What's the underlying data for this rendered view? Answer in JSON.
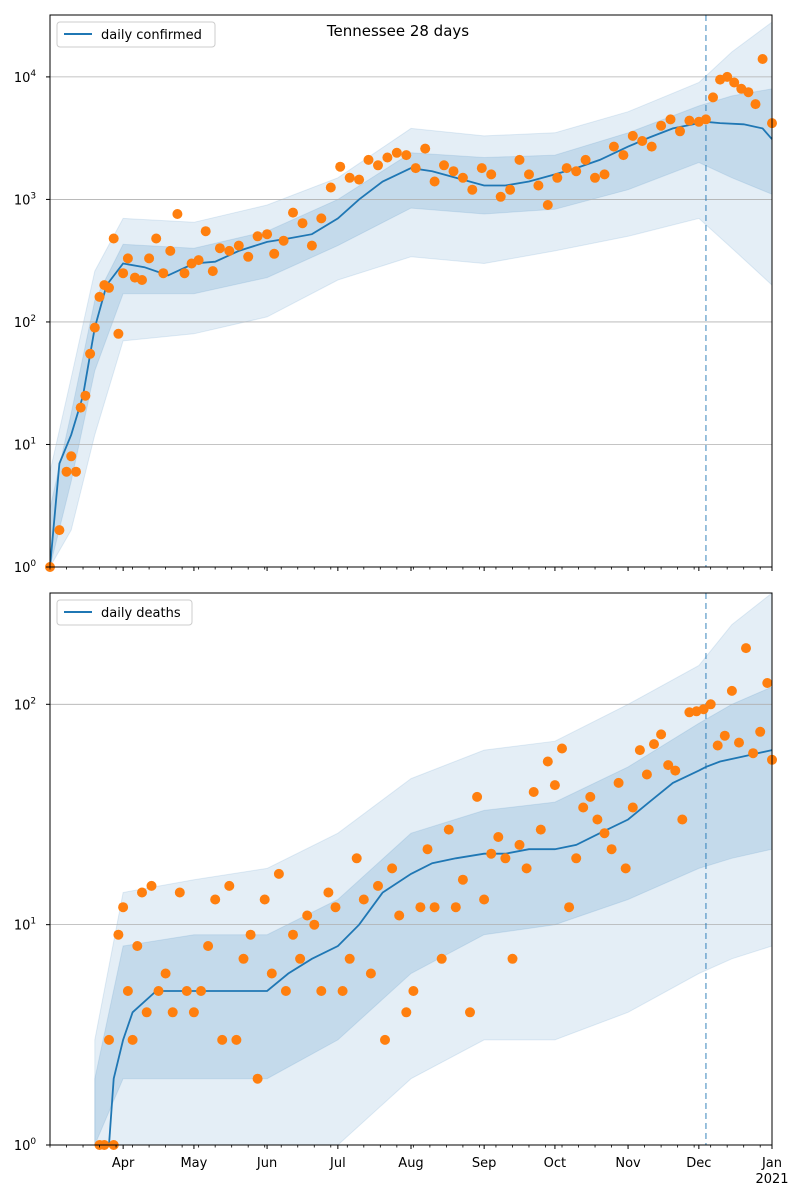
{
  "figure": {
    "title": "Tennessee 28 days"
  },
  "chart_data": [
    {
      "type": "scatter",
      "title": "Tennessee 28 days",
      "xlabel": "",
      "ylabel": "",
      "y_scale": "log",
      "ylim": [
        1,
        32000
      ],
      "xlim": [
        "2020-03-01",
        "2021-01-01"
      ],
      "x_ticks": [
        {
          "date": "2020-04-01",
          "label": "Apr"
        },
        {
          "date": "2020-05-01",
          "label": "May"
        },
        {
          "date": "2020-06-01",
          "label": "Jun"
        },
        {
          "date": "2020-07-01",
          "label": "Jul"
        },
        {
          "date": "2020-08-01",
          "label": "Aug"
        },
        {
          "date": "2020-09-01",
          "label": "Sep"
        },
        {
          "date": "2020-10-01",
          "label": "Oct"
        },
        {
          "date": "2020-11-01",
          "label": "Nov"
        },
        {
          "date": "2020-12-01",
          "label": "Dec"
        },
        {
          "date": "2021-01-01",
          "label": "Jan"
        }
      ],
      "x_tick_year_label": "2021",
      "y_ticks": [
        {
          "value": 1,
          "base": "10",
          "exp": "0"
        },
        {
          "value": 10,
          "base": "10",
          "exp": "1"
        },
        {
          "value": 100,
          "base": "10",
          "exp": "2"
        },
        {
          "value": 1000,
          "base": "10",
          "exp": "3"
        },
        {
          "value": 10000,
          "base": "10",
          "exp": "4"
        }
      ],
      "grid": "horizontal",
      "legend_position": "top-left",
      "forecast_start": "2020-12-04",
      "colors": {
        "line": "#1f77b4",
        "points": "#ff7f0e",
        "band": "#1f77b4"
      },
      "series": [
        {
          "name": "daily confirmed",
          "type": "line",
          "x": [
            "2020-03-01",
            "2020-03-05",
            "2020-03-10",
            "2020-03-15",
            "2020-03-20",
            "2020-03-25",
            "2020-04-01",
            "2020-04-10",
            "2020-04-20",
            "2020-05-01",
            "2020-05-10",
            "2020-05-20",
            "2020-06-01",
            "2020-06-10",
            "2020-06-20",
            "2020-07-01",
            "2020-07-10",
            "2020-07-20",
            "2020-08-01",
            "2020-08-10",
            "2020-08-20",
            "2020-09-01",
            "2020-09-10",
            "2020-09-20",
            "2020-10-01",
            "2020-10-10",
            "2020-10-20",
            "2020-11-01",
            "2020-11-10",
            "2020-11-20",
            "2020-12-01",
            "2020-12-04",
            "2020-12-10",
            "2020-12-20",
            "2020-12-28",
            "2021-01-01"
          ],
          "values": [
            1,
            7,
            12,
            25,
            90,
            200,
            300,
            280,
            240,
            300,
            310,
            380,
            450,
            480,
            520,
            700,
            1000,
            1400,
            1800,
            1700,
            1500,
            1300,
            1300,
            1400,
            1600,
            1800,
            2100,
            2700,
            3200,
            3800,
            4200,
            4300,
            4200,
            4100,
            3800,
            3100
          ]
        },
        {
          "name": "band_90_upper",
          "type": "band",
          "x": [
            "2020-03-01",
            "2020-03-10",
            "2020-03-20",
            "2020-04-01",
            "2020-05-01",
            "2020-06-01",
            "2020-07-01",
            "2020-08-01",
            "2020-09-01",
            "2020-10-01",
            "2020-11-01",
            "2020-12-01",
            "2020-12-15",
            "2021-01-01"
          ],
          "values": [
            6,
            35,
            260,
            700,
            650,
            900,
            1500,
            3800,
            3300,
            3500,
            5200,
            9000,
            16000,
            28000
          ]
        },
        {
          "name": "band_90_lower",
          "type": "band",
          "x": [
            "2020-03-01",
            "2020-03-10",
            "2020-03-20",
            "2020-04-01",
            "2020-05-01",
            "2020-06-01",
            "2020-07-01",
            "2020-08-01",
            "2020-09-01",
            "2020-10-01",
            "2020-11-01",
            "2020-12-01",
            "2020-12-15",
            "2021-01-01"
          ],
          "values": [
            1,
            2,
            12,
            70,
            80,
            110,
            220,
            340,
            300,
            380,
            500,
            700,
            400,
            200
          ]
        },
        {
          "name": "band_50_upper",
          "type": "band",
          "x": [
            "2020-03-01",
            "2020-03-10",
            "2020-03-20",
            "2020-04-01",
            "2020-05-01",
            "2020-06-01",
            "2020-07-01",
            "2020-08-01",
            "2020-09-01",
            "2020-10-01",
            "2020-11-01",
            "2020-12-01",
            "2020-12-15",
            "2021-01-01"
          ],
          "values": [
            3,
            18,
            150,
            430,
            400,
            550,
            1000,
            2400,
            2200,
            2300,
            3500,
            5800,
            7000,
            8000
          ]
        },
        {
          "name": "band_50_lower",
          "type": "band",
          "x": [
            "2020-03-01",
            "2020-03-10",
            "2020-03-20",
            "2020-04-01",
            "2020-05-01",
            "2020-06-01",
            "2020-07-01",
            "2020-08-01",
            "2020-09-01",
            "2020-10-01",
            "2020-11-01",
            "2020-12-01",
            "2020-12-15",
            "2021-01-01"
          ],
          "values": [
            1,
            5,
            40,
            170,
            170,
            230,
            420,
            850,
            760,
            830,
            1200,
            2000,
            1500,
            1100
          ]
        },
        {
          "name": "observed",
          "type": "scatter",
          "x": [
            "2020-03-01",
            "2020-03-05",
            "2020-03-08",
            "2020-03-10",
            "2020-03-12",
            "2020-03-14",
            "2020-03-16",
            "2020-03-18",
            "2020-03-20",
            "2020-03-22",
            "2020-03-24",
            "2020-03-26",
            "2020-03-28",
            "2020-03-30",
            "2020-04-01",
            "2020-04-03",
            "2020-04-06",
            "2020-04-09",
            "2020-04-12",
            "2020-04-15",
            "2020-04-18",
            "2020-04-21",
            "2020-04-24",
            "2020-04-27",
            "2020-04-30",
            "2020-05-03",
            "2020-05-06",
            "2020-05-09",
            "2020-05-12",
            "2020-05-16",
            "2020-05-20",
            "2020-05-24",
            "2020-05-28",
            "2020-06-01",
            "2020-06-04",
            "2020-06-08",
            "2020-06-12",
            "2020-06-16",
            "2020-06-20",
            "2020-06-24",
            "2020-06-28",
            "2020-07-02",
            "2020-07-06",
            "2020-07-10",
            "2020-07-14",
            "2020-07-18",
            "2020-07-22",
            "2020-07-26",
            "2020-07-30",
            "2020-08-03",
            "2020-08-07",
            "2020-08-11",
            "2020-08-15",
            "2020-08-19",
            "2020-08-23",
            "2020-08-27",
            "2020-08-31",
            "2020-09-04",
            "2020-09-08",
            "2020-09-12",
            "2020-09-16",
            "2020-09-20",
            "2020-09-24",
            "2020-09-28",
            "2020-10-02",
            "2020-10-06",
            "2020-10-10",
            "2020-10-14",
            "2020-10-18",
            "2020-10-22",
            "2020-10-26",
            "2020-10-30",
            "2020-11-03",
            "2020-11-07",
            "2020-11-11",
            "2020-11-15",
            "2020-11-19",
            "2020-11-23",
            "2020-11-27",
            "2020-12-01",
            "2020-12-04",
            "2020-12-07",
            "2020-12-10",
            "2020-12-13",
            "2020-12-16",
            "2020-12-19",
            "2020-12-22",
            "2020-12-25",
            "2020-12-28",
            "2021-01-01"
          ],
          "values": [
            1,
            2,
            6,
            8,
            6,
            20,
            25,
            55,
            90,
            160,
            200,
            190,
            480,
            80,
            250,
            330,
            230,
            220,
            330,
            480,
            250,
            380,
            760,
            250,
            300,
            320,
            550,
            260,
            400,
            380,
            420,
            340,
            500,
            520,
            360,
            460,
            780,
            640,
            420,
            700,
            1250,
            1850,
            1500,
            1450,
            2100,
            1900,
            2200,
            2400,
            2300,
            1800,
            2600,
            1400,
            1900,
            1700,
            1500,
            1200,
            1800,
            1600,
            1050,
            1200,
            2100,
            1600,
            1300,
            900,
            1500,
            1800,
            1700,
            2100,
            1500,
            1600,
            2700,
            2300,
            3300,
            3000,
            2700,
            4000,
            4500,
            3600,
            4400,
            4300,
            4500,
            6800,
            9500,
            10000,
            9000,
            8000,
            7500,
            6000,
            14000,
            4200
          ]
        }
      ]
    },
    {
      "type": "scatter",
      "title": "",
      "xlabel": "",
      "ylabel": "",
      "y_scale": "log",
      "ylim": [
        1,
        320
      ],
      "xlim": [
        "2020-03-01",
        "2021-01-01"
      ],
      "y_ticks": [
        {
          "value": 1,
          "base": "10",
          "exp": "0"
        },
        {
          "value": 10,
          "base": "10",
          "exp": "1"
        },
        {
          "value": 100,
          "base": "10",
          "exp": "2"
        }
      ],
      "grid": "horizontal",
      "legend_position": "top-left",
      "forecast_start": "2020-12-04",
      "colors": {
        "line": "#1f77b4",
        "points": "#ff7f0e",
        "band": "#1f77b4"
      },
      "series": [
        {
          "name": "daily deaths",
          "type": "line",
          "x": [
            "2020-03-20",
            "2020-03-26",
            "2020-03-28",
            "2020-04-01",
            "2020-04-05",
            "2020-04-15",
            "2020-05-01",
            "2020-05-15",
            "2020-06-01",
            "2020-06-10",
            "2020-06-20",
            "2020-07-01",
            "2020-07-10",
            "2020-07-20",
            "2020-08-01",
            "2020-08-10",
            "2020-08-20",
            "2020-09-01",
            "2020-09-10",
            "2020-09-20",
            "2020-10-01",
            "2020-10-10",
            "2020-10-20",
            "2020-11-01",
            "2020-11-10",
            "2020-11-20",
            "2020-12-01",
            "2020-12-04",
            "2020-12-10",
            "2020-12-20",
            "2021-01-01"
          ],
          "values": [
            1,
            1,
            2,
            3,
            4,
            5,
            5,
            5,
            5,
            6,
            7,
            8,
            10,
            14,
            17,
            19,
            20,
            21,
            21,
            22,
            22,
            23,
            26,
            30,
            36,
            44,
            50,
            52,
            55,
            58,
            62
          ]
        },
        {
          "name": "band_90_upper",
          "type": "band",
          "x": [
            "2020-03-20",
            "2020-04-01",
            "2020-05-01",
            "2020-06-01",
            "2020-07-01",
            "2020-08-01",
            "2020-09-01",
            "2020-10-01",
            "2020-11-01",
            "2020-12-01",
            "2020-12-15",
            "2021-01-01"
          ],
          "values": [
            3,
            14,
            16,
            18,
            26,
            46,
            62,
            68,
            100,
            150,
            230,
            330
          ]
        },
        {
          "name": "band_90_lower",
          "type": "band",
          "x": [
            "2020-03-20",
            "2020-04-01",
            "2020-05-01",
            "2020-06-01",
            "2020-07-01",
            "2020-08-01",
            "2020-09-01",
            "2020-10-01",
            "2020-11-01",
            "2020-12-01",
            "2020-12-15",
            "2021-01-01"
          ],
          "values": [
            1,
            1,
            1,
            1,
            1,
            2,
            3,
            3,
            4,
            6,
            7,
            8
          ]
        },
        {
          "name": "band_50_upper",
          "type": "band",
          "x": [
            "2020-03-20",
            "2020-04-01",
            "2020-05-01",
            "2020-06-01",
            "2020-07-01",
            "2020-08-01",
            "2020-09-01",
            "2020-10-01",
            "2020-11-01",
            "2020-12-01",
            "2020-12-15",
            "2021-01-01"
          ],
          "values": [
            2,
            8,
            9,
            9,
            13,
            26,
            33,
            36,
            52,
            82,
            100,
            120
          ]
        },
        {
          "name": "band_50_lower",
          "type": "band",
          "x": [
            "2020-03-20",
            "2020-04-01",
            "2020-05-01",
            "2020-06-01",
            "2020-07-01",
            "2020-08-01",
            "2020-09-01",
            "2020-10-01",
            "2020-11-01",
            "2020-12-01",
            "2020-12-15",
            "2021-01-01"
          ],
          "values": [
            1,
            2,
            2,
            2,
            3,
            6,
            9,
            10,
            13,
            18,
            20,
            22
          ]
        },
        {
          "name": "observed",
          "type": "scatter",
          "x": [
            "2020-03-22",
            "2020-03-24",
            "2020-03-26",
            "2020-03-28",
            "2020-03-30",
            "2020-04-01",
            "2020-04-03",
            "2020-04-05",
            "2020-04-07",
            "2020-04-09",
            "2020-04-11",
            "2020-04-13",
            "2020-04-16",
            "2020-04-19",
            "2020-04-22",
            "2020-04-25",
            "2020-04-28",
            "2020-05-01",
            "2020-05-04",
            "2020-05-07",
            "2020-05-10",
            "2020-05-13",
            "2020-05-16",
            "2020-05-19",
            "2020-05-22",
            "2020-05-25",
            "2020-05-28",
            "2020-05-31",
            "2020-06-03",
            "2020-06-06",
            "2020-06-09",
            "2020-06-12",
            "2020-06-15",
            "2020-06-18",
            "2020-06-21",
            "2020-06-24",
            "2020-06-27",
            "2020-06-30",
            "2020-07-03",
            "2020-07-06",
            "2020-07-09",
            "2020-07-12",
            "2020-07-15",
            "2020-07-18",
            "2020-07-21",
            "2020-07-24",
            "2020-07-27",
            "2020-07-30",
            "2020-08-02",
            "2020-08-05",
            "2020-08-08",
            "2020-08-11",
            "2020-08-14",
            "2020-08-17",
            "2020-08-20",
            "2020-08-23",
            "2020-08-26",
            "2020-08-29",
            "2020-09-01",
            "2020-09-04",
            "2020-09-07",
            "2020-09-10",
            "2020-09-13",
            "2020-09-16",
            "2020-09-19",
            "2020-09-22",
            "2020-09-25",
            "2020-09-28",
            "2020-10-01",
            "2020-10-04",
            "2020-10-07",
            "2020-10-10",
            "2020-10-13",
            "2020-10-16",
            "2020-10-19",
            "2020-10-22",
            "2020-10-25",
            "2020-10-28",
            "2020-10-31",
            "2020-11-03",
            "2020-11-06",
            "2020-11-09",
            "2020-11-12",
            "2020-11-15",
            "2020-11-18",
            "2020-11-21",
            "2020-11-24",
            "2020-11-27",
            "2020-11-30",
            "2020-12-03",
            "2020-12-06",
            "2020-12-09",
            "2020-12-12",
            "2020-12-15",
            "2020-12-18",
            "2020-12-21",
            "2020-12-24",
            "2020-12-27",
            "2020-12-30",
            "2021-01-01"
          ],
          "values": [
            1,
            1,
            3,
            1,
            9,
            12,
            5,
            3,
            8,
            14,
            4,
            15,
            5,
            6,
            4,
            14,
            5,
            4,
            5,
            8,
            13,
            3,
            15,
            3,
            7,
            9,
            2,
            13,
            6,
            17,
            5,
            9,
            7,
            11,
            10,
            5,
            14,
            12,
            5,
            7,
            20,
            13,
            6,
            15,
            3,
            18,
            11,
            4,
            5,
            12,
            22,
            12,
            7,
            27,
            12,
            16,
            4,
            38,
            13,
            21,
            25,
            20,
            7,
            23,
            18,
            40,
            27,
            55,
            43,
            63,
            12,
            20,
            34,
            38,
            30,
            26,
            22,
            44,
            18,
            34,
            62,
            48,
            66,
            73,
            53,
            50,
            30,
            92,
            93,
            95,
            100,
            65,
            72,
            115,
            67,
            180,
            60,
            75,
            125,
            56
          ]
        }
      ]
    }
  ]
}
